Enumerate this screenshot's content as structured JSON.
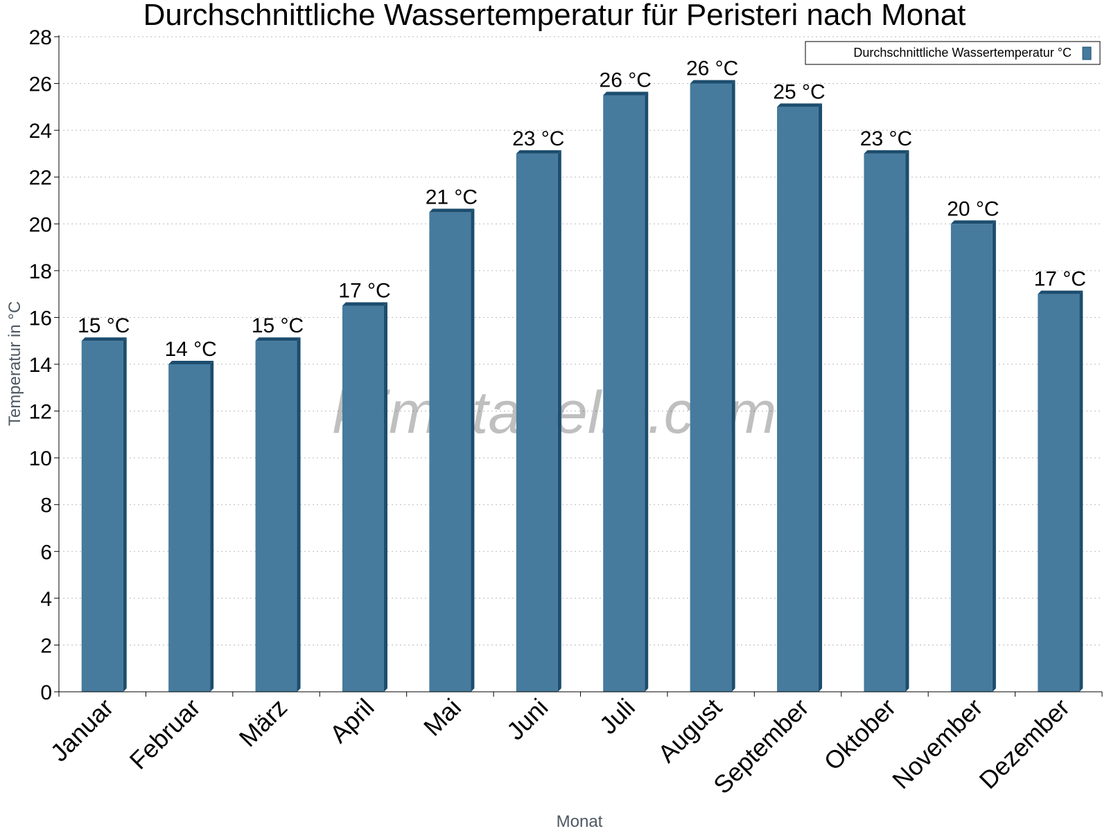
{
  "chart_data": {
    "type": "bar",
    "title": "Durchschnittliche Wassertemperatur für Peristeri nach Monat",
    "xlabel": "Monat",
    "ylabel": "Temperatur in °C",
    "categories": [
      "Januar",
      "Februar",
      "März",
      "April",
      "Mai",
      "Juni",
      "Juli",
      "August",
      "September",
      "Oktober",
      "November",
      "Dezember"
    ],
    "series": [
      {
        "name": "Durchschnittliche Wassertemperatur °C",
        "values": [
          15,
          14,
          15,
          16.5,
          20.5,
          23,
          25.5,
          26,
          25,
          23,
          20,
          17
        ],
        "labels": [
          "15 °C",
          "14 °C",
          "15 °C",
          "17 °C",
          "21 °C",
          "23 °C",
          "26 °C",
          "26 °C",
          "25 °C",
          "23 °C",
          "20 °C",
          "17 °C"
        ],
        "color": "#467b9e",
        "edge_color": "#1c4d6e"
      }
    ],
    "ylim": [
      0,
      28
    ],
    "yticks": [
      0,
      2,
      4,
      6,
      8,
      10,
      12,
      14,
      16,
      18,
      20,
      22,
      24,
      26,
      28
    ],
    "grid": true,
    "legend_position": "top-right",
    "watermark": "klimatabelle.com"
  }
}
